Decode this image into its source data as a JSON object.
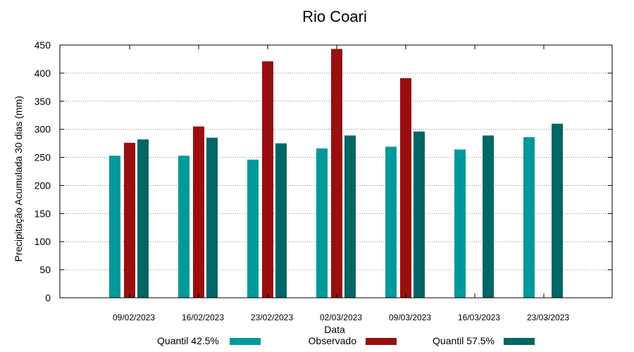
{
  "chart_data": {
    "type": "bar",
    "title": "Rio Coari",
    "xlabel": "Data",
    "ylabel": "Precipitação Acumulada 30 dias (mm)",
    "ylim": [
      0,
      450
    ],
    "yticks": [
      0,
      50,
      100,
      150,
      200,
      250,
      300,
      350,
      400,
      450
    ],
    "grid": true,
    "legend_position": "bottom",
    "categories": [
      "09/02/2023",
      "16/02/2023",
      "23/02/2023",
      "02/03/2023",
      "09/03/2023",
      "16/03/2023",
      "23/03/2023"
    ],
    "series": [
      {
        "name": "Quantil 42.5%",
        "color": "#009999",
        "values": [
          253,
          253,
          246,
          266,
          269,
          264,
          286
        ]
      },
      {
        "name": "Observado",
        "color": "#990f0f",
        "values": [
          276,
          305,
          421,
          443,
          391,
          null,
          null
        ]
      },
      {
        "name": "Quantil 57.5%",
        "color": "#006666",
        "values": [
          282,
          285,
          275,
          289,
          296,
          289,
          310
        ]
      }
    ]
  }
}
